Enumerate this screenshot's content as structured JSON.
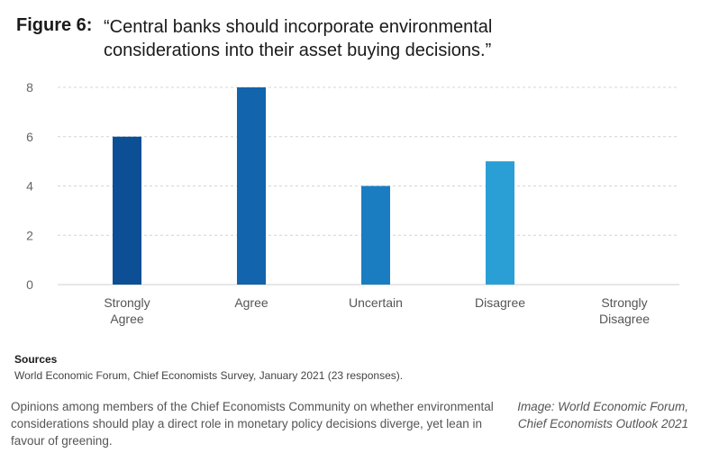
{
  "figure": {
    "label": "Figure 6:",
    "title_line1": "“Central banks should incorporate environmental",
    "title_line2": "considerations into their asset buying decisions.”"
  },
  "chart_data": {
    "type": "bar",
    "categories": [
      [
        "Strongly",
        "Agree"
      ],
      [
        "Agree"
      ],
      [
        "Uncertain"
      ],
      [
        "Disagree"
      ],
      [
        "Strongly",
        "Disagree"
      ]
    ],
    "values": [
      6,
      8,
      4,
      5,
      0
    ],
    "bar_colors": [
      "#0d4f94",
      "#1264ad",
      "#1a7dc2",
      "#299fd6",
      "#5cc0e6"
    ],
    "yticks": [
      0,
      2,
      4,
      6,
      8
    ],
    "ylim": [
      0,
      8
    ],
    "grid": true,
    "grid_style": "dashed"
  },
  "sources": {
    "heading": "Sources",
    "text": "World Economic Forum, Chief Economists Survey, January 2021 (23 responses)."
  },
  "caption": {
    "text": "Opinions among members of the Chief Economists Community on whether environmental considerations should play a direct role in monetary policy decisions diverge, yet lean in favour of greening."
  },
  "credit": {
    "text": "Image: World Economic Forum, Chief Economists Outlook 2021"
  }
}
